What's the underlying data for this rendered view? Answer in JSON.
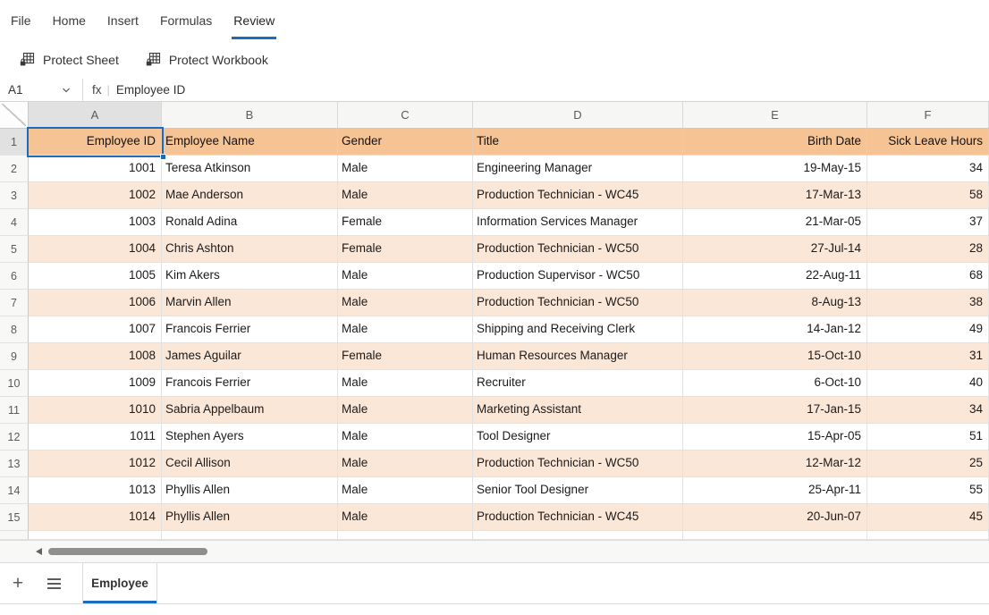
{
  "colors": {
    "accent": "#1a6dbe",
    "table_header_fill": "#f6c494",
    "band_fill": "#fbe7d8"
  },
  "ribbon": {
    "tabs": [
      {
        "label": "File",
        "active": false
      },
      {
        "label": "Home",
        "active": false
      },
      {
        "label": "Insert",
        "active": false
      },
      {
        "label": "Formulas",
        "active": false
      },
      {
        "label": "Review",
        "active": true
      }
    ]
  },
  "toolbar": {
    "buttons": [
      {
        "label": "Protect Sheet",
        "icon": "protect-sheet-icon"
      },
      {
        "label": "Protect Workbook",
        "icon": "protect-workbook-icon"
      }
    ]
  },
  "formula_bar": {
    "cell_ref": "A1",
    "fx_label": "fx",
    "separator": "|",
    "value": "Employee ID"
  },
  "grid": {
    "selected_cell": "A1",
    "column_letters": [
      "A",
      "B",
      "C",
      "D",
      "E",
      "F"
    ],
    "row_numbers": [
      "1",
      "2",
      "3",
      "4",
      "5",
      "6",
      "7",
      "8",
      "9",
      "10",
      "11",
      "12",
      "13",
      "14",
      "15"
    ],
    "header_row": [
      "Employee ID",
      "Employee Name",
      "Gender",
      "Title",
      "Birth Date",
      "Sick Leave Hours"
    ],
    "rows": [
      [
        "1001",
        "Teresa Atkinson",
        "Male",
        "Engineering Manager",
        "19-May-15",
        "34"
      ],
      [
        "1002",
        "Mae Anderson",
        "Male",
        "Production Technician - WC45",
        "17-Mar-13",
        "58"
      ],
      [
        "1003",
        "Ronald Adina",
        "Female",
        "Information Services Manager",
        "21-Mar-05",
        "37"
      ],
      [
        "1004",
        "Chris Ashton",
        "Female",
        "Production Technician - WC50",
        "27-Jul-14",
        "28"
      ],
      [
        "1005",
        "Kim Akers",
        "Male",
        "Production Supervisor - WC50",
        "22-Aug-11",
        "68"
      ],
      [
        "1006",
        "Marvin Allen",
        "Male",
        "Production Technician - WC50",
        "8-Aug-13",
        "38"
      ],
      [
        "1007",
        "Francois Ferrier",
        "Male",
        "Shipping and Receiving Clerk",
        "14-Jan-12",
        "49"
      ],
      [
        "1008",
        "James Aguilar",
        "Female",
        "Human Resources Manager",
        "15-Oct-10",
        "31"
      ],
      [
        "1009",
        "Francois Ferrier",
        "Male",
        "Recruiter",
        "6-Oct-10",
        "40"
      ],
      [
        "1010",
        "Sabria Appelbaum",
        "Male",
        "Marketing Assistant",
        "17-Jan-15",
        "34"
      ],
      [
        "1011",
        "Stephen Ayers",
        "Male",
        "Tool Designer",
        "15-Apr-05",
        "51"
      ],
      [
        "1012",
        "Cecil Allison",
        "Male",
        "Production Technician - WC50",
        "12-Mar-12",
        "25"
      ],
      [
        "1013",
        "Phyllis Allen",
        "Male",
        "Senior Tool Designer",
        "25-Apr-11",
        "55"
      ],
      [
        "1014",
        "Phyllis Allen",
        "Male",
        "Production Technician - WC45",
        "20-Jun-07",
        "45"
      ]
    ]
  },
  "sheet_bar": {
    "tabs": [
      {
        "label": "Employee",
        "active": true
      }
    ]
  },
  "icons": {
    "add_sheet": "plus",
    "sheet_list": "hamburger-menu",
    "name_box_chevron": "chevron-down",
    "scroll_left": "triangle-left"
  }
}
